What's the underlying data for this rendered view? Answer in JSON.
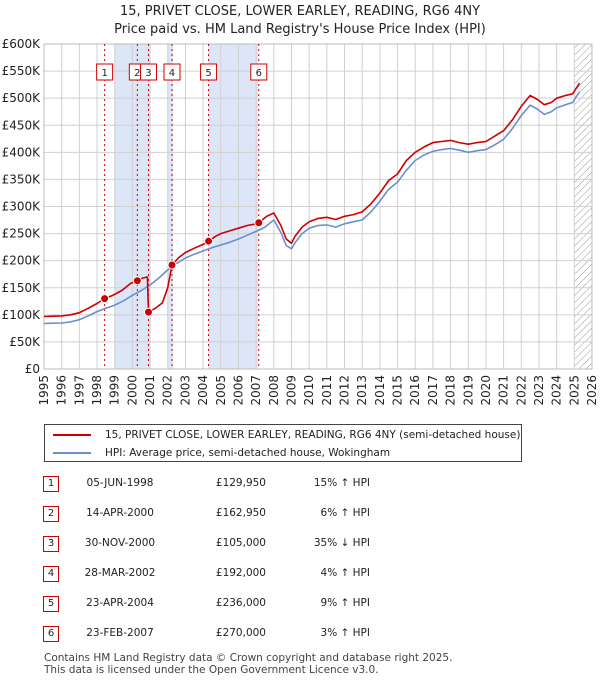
{
  "title": {
    "line1": "15, PRIVET CLOSE, LOWER EARLEY, READING, RG6 4NY",
    "line2": "Price paid vs. HM Land Registry's House Price Index (HPI)"
  },
  "legend": {
    "property": "15, PRIVET CLOSE, LOWER EARLEY, READING, RG6 4NY (semi-detached house)",
    "hpi": "HPI: Average price, semi-detached house, Wokingham"
  },
  "colors": {
    "property": "#cc0000",
    "hpi": "#6a8fd0",
    "band": "#dde6f7",
    "grid": "#d0d0d0",
    "marker_border": "#cc0000"
  },
  "chart_data": {
    "type": "line",
    "xlim": [
      1995,
      2026
    ],
    "ylim": [
      0,
      600000
    ],
    "x_ticks": [
      "1995",
      "1996",
      "1997",
      "1998",
      "1999",
      "2000",
      "2001",
      "2002",
      "2003",
      "2004",
      "2005",
      "2006",
      "2007",
      "2008",
      "2009",
      "2010",
      "2011",
      "2012",
      "2013",
      "2014",
      "2015",
      "2016",
      "2017",
      "2018",
      "2019",
      "2020",
      "2021",
      "2022",
      "2023",
      "2024",
      "2025",
      "2026"
    ],
    "y_ticks": [
      {
        "value": 0,
        "label": "£0"
      },
      {
        "value": 50000,
        "label": "£50K"
      },
      {
        "value": 100000,
        "label": "£100K"
      },
      {
        "value": 150000,
        "label": "£150K"
      },
      {
        "value": 200000,
        "label": "£200K"
      },
      {
        "value": 250000,
        "label": "£250K"
      },
      {
        "value": 300000,
        "label": "£300K"
      },
      {
        "value": 350000,
        "label": "£350K"
      },
      {
        "value": 400000,
        "label": "£400K"
      },
      {
        "value": 450000,
        "label": "£450K"
      },
      {
        "value": 500000,
        "label": "£500K"
      },
      {
        "value": 550000,
        "label": "£550K"
      },
      {
        "value": 600000,
        "label": "£600K"
      }
    ],
    "shaded_bands": [
      [
        1999.0,
        2000.0
      ],
      [
        2000.0,
        2001.0
      ],
      [
        2002.0,
        2002.3
      ],
      [
        2004.3,
        2007.1
      ]
    ],
    "hatched_region": [
      2025.0,
      2026.0
    ],
    "series": [
      {
        "name": "15, PRIVET CLOSE, LOWER EARLEY, READING, RG6 4NY (semi-detached house)",
        "x": [
          1995.0,
          1995.5,
          1996.0,
          1996.5,
          1997.0,
          1997.5,
          1998.0,
          1998.43,
          1998.9,
          1999.4,
          1999.9,
          2000.28,
          2000.6,
          2000.85,
          2000.91,
          2001.3,
          2001.7,
          2002.0,
          2002.24,
          2002.6,
          2003.0,
          2003.5,
          2004.0,
          2004.31,
          2004.7,
          2005.0,
          2005.5,
          2006.0,
          2006.5,
          2007.0,
          2007.15,
          2007.6,
          2008.0,
          2008.4,
          2008.7,
          2009.0,
          2009.2,
          2009.6,
          2010.0,
          2010.5,
          2011.0,
          2011.5,
          2012.0,
          2012.5,
          2013.0,
          2013.5,
          2014.0,
          2014.5,
          2015.0,
          2015.5,
          2016.0,
          2016.5,
          2017.0,
          2017.5,
          2018.0,
          2018.5,
          2019.0,
          2019.5,
          2020.0,
          2020.5,
          2021.0,
          2021.5,
          2022.0,
          2022.5,
          2022.9,
          2023.3,
          2023.7,
          2024.0,
          2024.5,
          2024.9,
          2025.3
        ],
        "values": [
          97000,
          97500,
          98000,
          100000,
          104000,
          112000,
          121000,
          129950,
          136000,
          145000,
          158000,
          162950,
          168000,
          170000,
          105000,
          112000,
          122000,
          150000,
          192000,
          205000,
          215000,
          223000,
          230000,
          236000,
          245000,
          250000,
          255000,
          260000,
          265000,
          268000,
          270000,
          282000,
          288000,
          265000,
          240000,
          232000,
          245000,
          262000,
          272000,
          278000,
          280000,
          276000,
          282000,
          285000,
          290000,
          305000,
          325000,
          348000,
          360000,
          385000,
          400000,
          410000,
          418000,
          420000,
          422000,
          418000,
          415000,
          418000,
          420000,
          430000,
          440000,
          460000,
          485000,
          505000,
          498000,
          488000,
          492000,
          500000,
          505000,
          508000,
          528000
        ]
      },
      {
        "name": "HPI: Average price, semi-detached house, Wokingham",
        "x": [
          1995.0,
          1995.5,
          1996.0,
          1996.5,
          1997.0,
          1997.5,
          1998.0,
          1998.5,
          1999.0,
          1999.5,
          2000.0,
          2000.5,
          2001.0,
          2001.5,
          2002.0,
          2002.5,
          2003.0,
          2003.5,
          2004.0,
          2004.5,
          2005.0,
          2005.5,
          2006.0,
          2006.5,
          2007.0,
          2007.5,
          2008.0,
          2008.4,
          2008.7,
          2009.0,
          2009.2,
          2009.6,
          2010.0,
          2010.5,
          2011.0,
          2011.5,
          2012.0,
          2012.5,
          2013.0,
          2013.5,
          2014.0,
          2014.5,
          2015.0,
          2015.5,
          2016.0,
          2016.5,
          2017.0,
          2017.5,
          2018.0,
          2018.5,
          2019.0,
          2019.5,
          2020.0,
          2020.5,
          2021.0,
          2021.5,
          2022.0,
          2022.5,
          2022.9,
          2023.3,
          2023.7,
          2024.0,
          2024.5,
          2024.9,
          2025.3
        ],
        "values": [
          84000,
          84500,
          85000,
          87000,
          91000,
          98000,
          106000,
          112000,
          118000,
          126000,
          136000,
          145000,
          155000,
          168000,
          183000,
          195000,
          205000,
          212000,
          218000,
          224000,
          229000,
          234000,
          240000,
          247000,
          254000,
          262000,
          275000,
          252000,
          228000,
          222000,
          233000,
          250000,
          260000,
          265000,
          266000,
          262000,
          268000,
          272000,
          275000,
          290000,
          310000,
          332000,
          345000,
          367000,
          385000,
          395000,
          402000,
          405000,
          407000,
          404000,
          400000,
          403000,
          405000,
          414000,
          424000,
          444000,
          468000,
          487000,
          480000,
          470000,
          475000,
          482000,
          488000,
          492000,
          512000
        ]
      }
    ],
    "transactions": [
      {
        "id": "1",
        "date": "05-JUN-1998",
        "x": 1998.43,
        "price": 129950,
        "price_label": "£129,950",
        "hpi": "15% ↑ HPI"
      },
      {
        "id": "2",
        "date": "14-APR-2000",
        "x": 2000.28,
        "price": 162950,
        "price_label": "£162,950",
        "hpi": "6% ↑ HPI"
      },
      {
        "id": "3",
        "date": "30-NOV-2000",
        "x": 2000.91,
        "price": 105000,
        "price_label": "£105,000",
        "hpi": "35% ↓ HPI"
      },
      {
        "id": "4",
        "date": "28-MAR-2002",
        "x": 2002.24,
        "price": 192000,
        "price_label": "£192,000",
        "hpi": "4% ↑ HPI"
      },
      {
        "id": "5",
        "date": "23-APR-2004",
        "x": 2004.31,
        "price": 236000,
        "price_label": "£236,000",
        "hpi": "9% ↑ HPI"
      },
      {
        "id": "6",
        "date": "23-FEB-2007",
        "x": 2007.15,
        "price": 270000,
        "price_label": "£270,000",
        "hpi": "3% ↑ HPI"
      }
    ]
  },
  "footer": {
    "line1": "Contains HM Land Registry data © Crown copyright and database right 2025.",
    "line2": "This data is licensed under the Open Government Licence v3.0."
  }
}
